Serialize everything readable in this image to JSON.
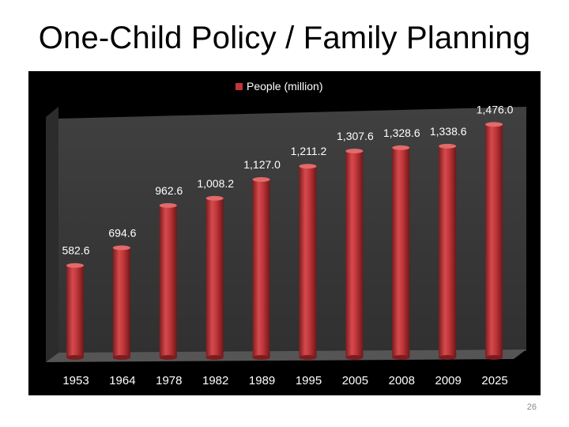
{
  "slide": {
    "title": "One-Child Policy / Family Planning",
    "page_number": "26"
  },
  "colors": {
    "bar": "#c0363a",
    "bar_top": "#e36a6a",
    "panel_background": "#000000",
    "plot_wall": "#3a3a3a",
    "plot_floor": "#4b4b4b",
    "text": "#ffffff"
  },
  "chart_data": {
    "type": "bar",
    "style": "3d-cylinder",
    "title": "",
    "xlabel": "",
    "ylabel": "",
    "legend": {
      "position": "top",
      "entries": [
        "People (million)"
      ]
    },
    "grid": false,
    "categories": [
      "1953",
      "1964",
      "1978",
      "1982",
      "1989",
      "1995",
      "2005",
      "2008",
      "2009",
      "2025"
    ],
    "series": [
      {
        "name": "People (million)",
        "values": [
          582.6,
          694.6,
          962.6,
          1008.2,
          1127.0,
          1211.2,
          1307.6,
          1328.6,
          1338.6,
          1476.0
        ],
        "data_labels": [
          "582.6",
          "694.6",
          "962.6",
          "1,008.2",
          "1,127.0",
          "1,211.2",
          "1,307.6",
          "1,328.6",
          "1,338.6",
          "1,476.0"
        ]
      }
    ],
    "ylim": [
      0,
      1600
    ]
  }
}
